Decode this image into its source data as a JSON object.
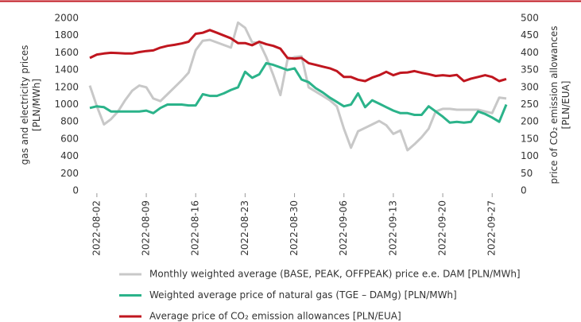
{
  "chart_data": {
    "type": "line",
    "ylabel": [
      "gas and electricity prices",
      "[PLN/MWh]"
    ],
    "y2label": [
      "price of CO₂ emission allowances",
      "[PLN/EUA]"
    ],
    "x": [
      "2022-08-01",
      "2022-08-02",
      "2022-08-03",
      "2022-08-04",
      "2022-08-05",
      "2022-08-06",
      "2022-08-07",
      "2022-08-08",
      "2022-08-09",
      "2022-08-10",
      "2022-08-11",
      "2022-08-12",
      "2022-08-13",
      "2022-08-14",
      "2022-08-15",
      "2022-08-16",
      "2022-08-17",
      "2022-08-18",
      "2022-08-19",
      "2022-08-20",
      "2022-08-21",
      "2022-08-22",
      "2022-08-23",
      "2022-08-24",
      "2022-08-25",
      "2022-08-26",
      "2022-08-27",
      "2022-08-28",
      "2022-08-29",
      "2022-08-30",
      "2022-08-31",
      "2022-09-01",
      "2022-09-02",
      "2022-09-03",
      "2022-09-04",
      "2022-09-05",
      "2022-09-06",
      "2022-09-07",
      "2022-09-08",
      "2022-09-09",
      "2022-09-10",
      "2022-09-11",
      "2022-09-12",
      "2022-09-13",
      "2022-09-14",
      "2022-09-15",
      "2022-09-16",
      "2022-09-17",
      "2022-09-18",
      "2022-09-19",
      "2022-09-20",
      "2022-09-21",
      "2022-09-22",
      "2022-09-23",
      "2022-09-24",
      "2022-09-25",
      "2022-09-26",
      "2022-09-27",
      "2022-09-28",
      "2022-09-29"
    ],
    "xlim": [
      "2022-08-01",
      "2022-09-29"
    ],
    "xticks": [
      "2022-08-02",
      "2022-08-09",
      "2022-08-16",
      "2022-08-23",
      "2022-08-30",
      "2022-09-06",
      "2022-09-13",
      "2022-09-20",
      "2022-09-27"
    ],
    "ylim": [
      0,
      2000
    ],
    "yticks": [
      0,
      200,
      400,
      600,
      800,
      1000,
      1200,
      1400,
      1600,
      1800,
      2000
    ],
    "y2lim": [
      0,
      500
    ],
    "y2ticks": [
      0,
      50,
      100,
      150,
      200,
      250,
      300,
      350,
      400,
      450,
      500
    ],
    "series": [
      {
        "name": "Monthly weighted average (BASE, PEAK, OFFPEAK) price e.e. DAM [PLN/MWh]",
        "color": "#c8c8c8",
        "values": [
          1220,
          980,
          770,
          830,
          920,
          1050,
          1160,
          1220,
          1200,
          1070,
          1040,
          1120,
          1200,
          1280,
          1370,
          1630,
          1740,
          1750,
          1720,
          1690,
          1660,
          1950,
          1890,
          1720,
          1720,
          1550,
          1340,
          1110,
          1520,
          1550,
          1560,
          1200,
          1150,
          1100,
          1050,
          980,
          720,
          500,
          690,
          730,
          770,
          810,
          760,
          660,
          700,
          470,
          540,
          620,
          720,
          920,
          950,
          950,
          940,
          940,
          940,
          940,
          920,
          900,
          1080,
          1070
        ]
      },
      {
        "name": "Weighted average price of natural gas (TGE – DAMg) [PLN/MWh]",
        "color": "#2bb38a",
        "values": [
          960,
          980,
          970,
          920,
          920,
          920,
          920,
          920,
          930,
          900,
          960,
          1000,
          1000,
          1000,
          990,
          990,
          1120,
          1100,
          1100,
          1130,
          1170,
          1200,
          1380,
          1310,
          1350,
          1480,
          1460,
          1430,
          1400,
          1420,
          1290,
          1260,
          1190,
          1140,
          1080,
          1030,
          980,
          1000,
          1130,
          970,
          1050,
          1010,
          970,
          930,
          900,
          900,
          880,
          880,
          980,
          920,
          860,
          790,
          800,
          790,
          800,
          920,
          890,
          850,
          800,
          1000
        ]
      },
      {
        "name": "Average price of CO₂ emission allowances [PLN/EUA]",
        "color": "#c0161f",
        "axis": "y2",
        "values": [
          385,
          395,
          398,
          400,
          399,
          398,
          398,
          402,
          405,
          407,
          415,
          420,
          423,
          427,
          432,
          455,
          458,
          466,
          458,
          450,
          442,
          428,
          428,
          422,
          432,
          425,
          420,
          412,
          385,
          383,
          385,
          370,
          365,
          360,
          355,
          347,
          330,
          330,
          322,
          318,
          328,
          335,
          345,
          335,
          342,
          343,
          347,
          342,
          338,
          333,
          335,
          333,
          336,
          318,
          325,
          330,
          335,
          330,
          318,
          324
        ]
      }
    ]
  }
}
